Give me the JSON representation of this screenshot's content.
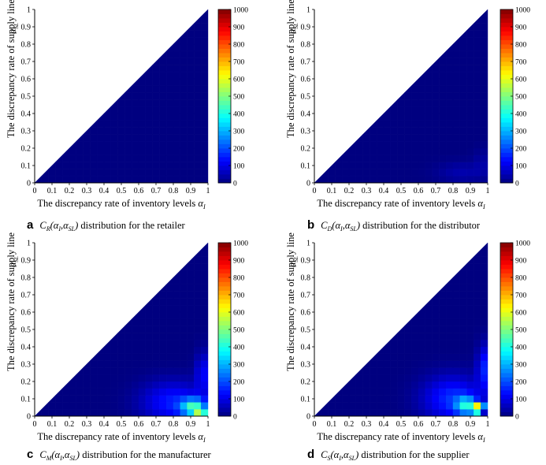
{
  "figure": {
    "colorbar_ticks": [
      "1000",
      "900",
      "800",
      "700",
      "600",
      "500",
      "400",
      "300",
      "200",
      "100",
      "0"
    ],
    "x_ticks": [
      "0",
      "0.1",
      "0.2",
      "0.3",
      "0.4",
      "0.5",
      "0.6",
      "0.7",
      "0.8",
      "0.9",
      "1"
    ],
    "y_ticks": [
      "0",
      "0.1",
      "0.2",
      "0.3",
      "0.4",
      "0.5",
      "0.6",
      "0.7",
      "0.8",
      "0.9",
      "1"
    ],
    "xlabel_text": "The discrepancy rate of inventory levels ",
    "xlabel_symbol": "α",
    "xlabel_sub": "I",
    "ylabel_text": "The discrepancy rate of supply line",
    "ylabel_symbol": "α",
    "ylabel_sub": "SL"
  },
  "panels": [
    {
      "letter": "a",
      "func": "C",
      "func_sub": "R",
      "args": "(α",
      "args_sub1": "I",
      "args_mid": ",α",
      "args_sub2": "SL",
      "args_end": ")",
      "caption": " distribution for the retailer"
    },
    {
      "letter": "b",
      "func": "C",
      "func_sub": "D",
      "args": "(α",
      "args_sub1": "I",
      "args_mid": ",α",
      "args_sub2": "SL",
      "args_end": ")",
      "caption": "  distribution for the distributor"
    },
    {
      "letter": "c",
      "func": "C",
      "func_sub": "M",
      "args": "(α",
      "args_sub1": "I",
      "args_mid": ",α",
      "args_sub2": "SL",
      "args_end": ")",
      "caption": " distribution for the manufacturer"
    },
    {
      "letter": "d",
      "func": "C",
      "func_sub": "S",
      "args": "(α",
      "args_sub1": "I",
      "args_mid": ",α",
      "args_sub2": "SL",
      "args_end": ")",
      "caption": "  distribution for the supplier"
    }
  ],
  "chart_data": [
    {
      "type": "heatmap",
      "panel": "a",
      "x_range": [
        0,
        1
      ],
      "y_range": [
        0,
        1
      ],
      "color_range": [
        0,
        1000
      ],
      "colormap": "jet",
      "region": "lower triangle (y <= x); upper triangle blank",
      "background_value": 0,
      "hotspots": []
    },
    {
      "type": "heatmap",
      "panel": "b",
      "x_range": [
        0,
        1
      ],
      "y_range": [
        0,
        1
      ],
      "color_range": [
        0,
        1000
      ],
      "colormap": "jet",
      "region": "lower triangle (y <= x); upper triangle blank",
      "background_value": 0,
      "hotspots": [
        {
          "x": 0.85,
          "y": 0.06,
          "sx": 0.14,
          "sy": 0.06,
          "value": 45
        },
        {
          "x": 0.97,
          "y": 0.12,
          "sx": 0.05,
          "sy": 0.08,
          "value": 30
        }
      ]
    },
    {
      "type": "heatmap",
      "panel": "c",
      "x_range": [
        0,
        1
      ],
      "y_range": [
        0,
        1
      ],
      "color_range": [
        0,
        1000
      ],
      "colormap": "jet",
      "region": "lower triangle (y <= x); upper triangle blank",
      "background_value": 0,
      "hotspots": [
        {
          "x": 0.8,
          "y": 0.08,
          "sx": 0.18,
          "sy": 0.12,
          "value": 150
        },
        {
          "x": 0.92,
          "y": 0.05,
          "sx": 0.07,
          "sy": 0.05,
          "value": 380
        },
        {
          "x": 0.96,
          "y": 0.02,
          "sx": 0.02,
          "sy": 0.02,
          "value": 650
        },
        {
          "x": 0.97,
          "y": 0.25,
          "sx": 0.04,
          "sy": 0.12,
          "value": 120
        }
      ]
    },
    {
      "type": "heatmap",
      "panel": "d",
      "x_range": [
        0,
        1
      ],
      "y_range": [
        0,
        1
      ],
      "color_range": [
        0,
        1000
      ],
      "colormap": "jet",
      "region": "lower triangle (y <= x); upper triangle blank",
      "background_value": 0,
      "hotspots": [
        {
          "x": 0.8,
          "y": 0.1,
          "sx": 0.17,
          "sy": 0.13,
          "value": 170
        },
        {
          "x": 0.88,
          "y": 0.06,
          "sx": 0.06,
          "sy": 0.05,
          "value": 300
        },
        {
          "x": 0.93,
          "y": 0.04,
          "sx": 0.02,
          "sy": 0.02,
          "value": 900
        },
        {
          "x": 0.96,
          "y": 0.05,
          "sx": 0.02,
          "sy": 0.02,
          "value": 650
        },
        {
          "x": 0.98,
          "y": 0.28,
          "sx": 0.04,
          "sy": 0.13,
          "value": 150
        }
      ]
    }
  ]
}
